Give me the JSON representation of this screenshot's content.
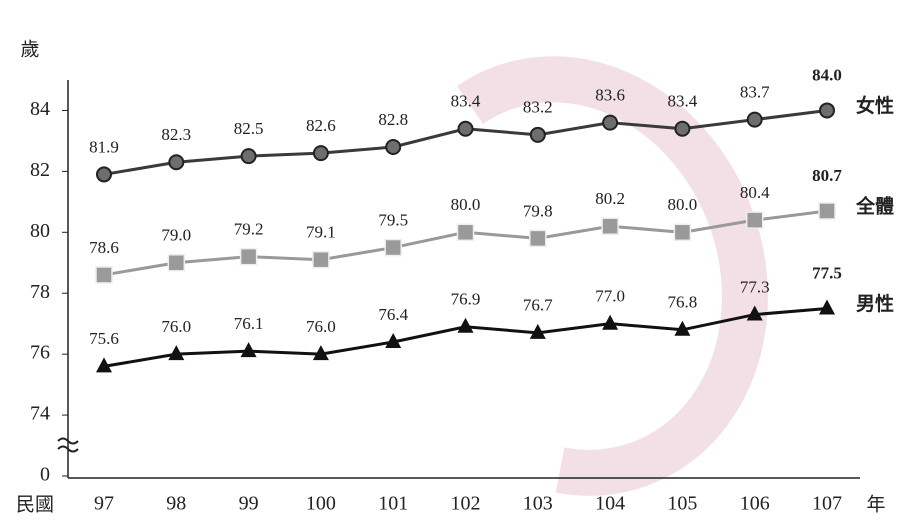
{
  "chart_data": {
    "type": "line",
    "y_label": "歲",
    "x_label_left": "民國",
    "x_label_right": "年",
    "categories": [
      "97",
      "98",
      "99",
      "100",
      "101",
      "102",
      "103",
      "104",
      "105",
      "106",
      "107"
    ],
    "ylim": [
      0,
      85
    ],
    "axis_break": [
      0,
      74
    ],
    "yticks": [
      0,
      74,
      76,
      78,
      80,
      82,
      84
    ],
    "series": [
      {
        "name": "女性",
        "color": "#3a3a3a",
        "marker": "circle",
        "values": [
          81.9,
          82.3,
          82.5,
          82.6,
          82.8,
          83.4,
          83.2,
          83.6,
          83.4,
          83.7,
          84.0
        ],
        "value_labels": [
          "81.9",
          "82.3",
          "82.5",
          "82.6",
          "82.8",
          "83.4",
          "83.2",
          "83.6",
          "83.4",
          "83.7",
          "84.0"
        ]
      },
      {
        "name": "全體",
        "color": "#999999",
        "marker": "square",
        "values": [
          78.6,
          79.0,
          79.2,
          79.1,
          79.5,
          80.0,
          79.8,
          80.2,
          80.0,
          80.4,
          80.7
        ],
        "value_labels": [
          "78.6",
          "79.0",
          "79.2",
          "79.1",
          "79.5",
          "80.0",
          "79.8",
          "80.2",
          "80.0",
          "80.4",
          "80.7"
        ]
      },
      {
        "name": "男性",
        "color": "#111111",
        "marker": "triangle",
        "values": [
          75.6,
          76.0,
          76.1,
          76.0,
          76.4,
          76.9,
          76.7,
          77.0,
          76.8,
          77.3,
          77.5
        ],
        "value_labels": [
          "75.6",
          "76.0",
          "76.1",
          "76.0",
          "76.4",
          "76.9",
          "76.7",
          "77.0",
          "76.8",
          "77.3",
          "77.5"
        ]
      }
    ]
  }
}
